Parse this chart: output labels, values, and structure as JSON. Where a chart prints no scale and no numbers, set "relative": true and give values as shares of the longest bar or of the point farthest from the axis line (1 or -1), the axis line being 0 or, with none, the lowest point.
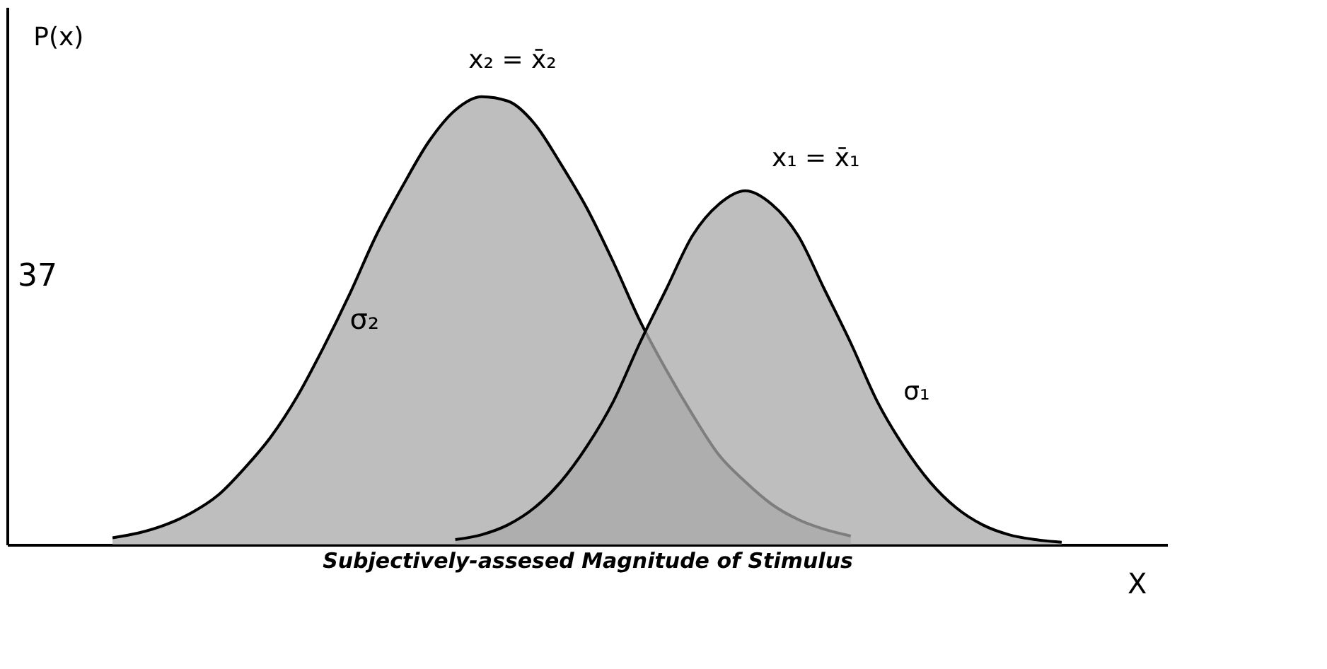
{
  "chart_data": {
    "type": "area",
    "relative": true,
    "ylabel": "P(x)",
    "xlabel": "Subjectively-assesed Magnitude of Stimulus",
    "categories": [
      null,
      null,
      null,
      null,
      null,
      null,
      null,
      null,
      null,
      null,
      null,
      null,
      null,
      null,
      null,
      null,
      null,
      null,
      null,
      null,
      null,
      null,
      null,
      null,
      null,
      null,
      null,
      null,
      null,
      null,
      null,
      null,
      null,
      null,
      null,
      null,
      null
    ],
    "series": [
      {
        "color": "#a8a8a8",
        "values": [
          0.015,
          0.026,
          0.044,
          0.071,
          0.11,
          0.17,
          0.24,
          0.33,
          0.44,
          0.56,
          0.69,
          0.8,
          0.9,
          0.97,
          1,
          0.99,
          0.94,
          0.85,
          0.75,
          0.63,
          0.5,
          0.39,
          0.29,
          0.2,
          0.14,
          0.09,
          0.056,
          0.034,
          0.019,
          null,
          null,
          null,
          null,
          null,
          null,
          null,
          null
        ]
      },
      {
        "color": "#a8a8a8",
        "values": [
          null,
          null,
          null,
          null,
          null,
          null,
          null,
          null,
          null,
          null,
          null,
          null,
          null,
          0.011,
          0.022,
          0.044,
          0.082,
          0.14,
          0.22,
          0.32,
          0.45,
          0.57,
          0.69,
          0.76,
          0.79,
          0.76,
          0.69,
          0.57,
          0.45,
          0.32,
          0.22,
          0.14,
          0.082,
          0.044,
          0.022,
          0.011,
          0.005
        ]
      }
    ],
    "annotations": [
      "37",
      "x₂ = x̄₂",
      "x₁ = x̄₁",
      "σ₂",
      "σ₁",
      "X"
    ]
  }
}
